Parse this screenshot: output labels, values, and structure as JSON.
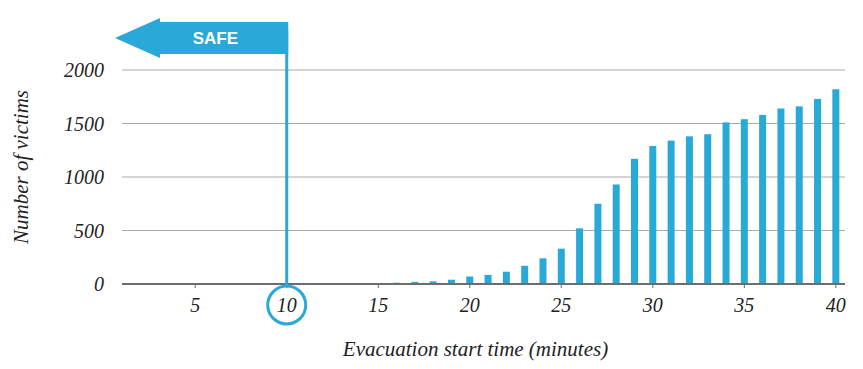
{
  "chart_data": {
    "type": "bar",
    "x_label": "Evacuation start time (minutes)",
    "y_label": "Number of victims",
    "x": [
      13,
      14,
      15,
      16,
      17,
      18,
      19,
      20,
      21,
      22,
      23,
      24,
      25,
      26,
      27,
      28,
      29,
      30,
      31,
      32,
      33,
      34,
      35,
      36,
      37,
      38,
      39,
      40
    ],
    "values": [
      3,
      5,
      8,
      12,
      20,
      25,
      40,
      70,
      85,
      115,
      170,
      240,
      330,
      520,
      750,
      930,
      1170,
      1290,
      1340,
      1380,
      1400,
      1510,
      1540,
      1580,
      1640,
      1660,
      1730,
      1820
    ],
    "color": "#29a9d8",
    "xlim": [
      1,
      40.5
    ],
    "xticks": [
      5,
      10,
      15,
      20,
      25,
      30,
      35,
      40
    ],
    "ylim": [
      0,
      2000
    ],
    "yticks": [
      0,
      500,
      1000,
      1500,
      2000
    ],
    "grid": true,
    "annotations": [
      {
        "text": "SAFE",
        "x": 10
      }
    ]
  }
}
